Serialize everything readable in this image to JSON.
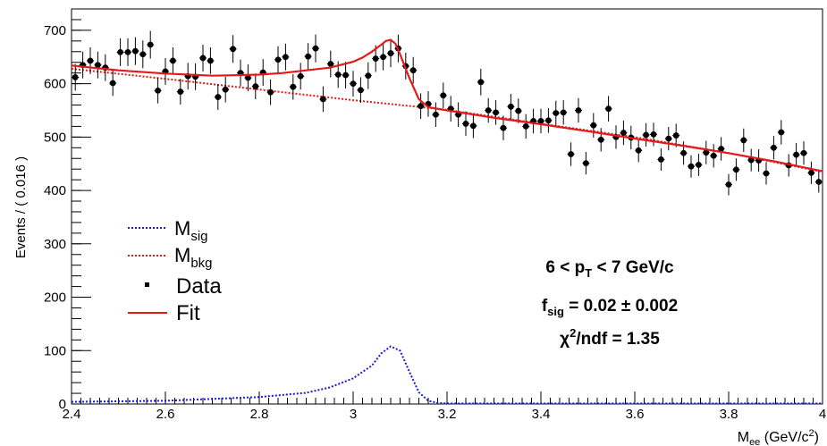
{
  "chart_data": {
    "type": "scatter",
    "xlabel_main": "M",
    "xlabel_sub": "ee",
    "xlabel_unit_pre": " (GeV/c",
    "xlabel_unit_sup": "2",
    "xlabel_unit_post": ")",
    "ylabel": "Events / ( 0.016 )",
    "xlim": [
      2.4,
      4.0
    ],
    "ylim": [
      0,
      740
    ],
    "x_ticks": [
      2.4,
      2.6,
      2.8,
      3.0,
      3.2,
      3.4,
      3.6,
      3.8,
      4.0
    ],
    "x_tick_labels": [
      "2.4",
      "2.6",
      "2.8",
      "3",
      "3.2",
      "3.4",
      "3.6",
      "3.8",
      "4"
    ],
    "y_ticks": [
      0,
      100,
      200,
      300,
      400,
      500,
      600,
      700
    ],
    "y_tick_labels": [
      "0",
      "100",
      "200",
      "300",
      "400",
      "500",
      "600",
      "700"
    ],
    "legend": {
      "sig_main": "M",
      "sig_sub": "sig",
      "bkg_main": "M",
      "bkg_sub": "bkg",
      "data": "Data",
      "fit": "Fit"
    },
    "annotations": {
      "pt_pre": "6 < p",
      "pt_sub": "T",
      "pt_post": " < 7 GeV/c",
      "fsig_main": "f",
      "fsig_sub": "sig",
      "fsig_post": " = 0.02 ± 0.002",
      "chi_pre": "χ",
      "chi_sup": "2",
      "chi_post": "/ndf = 1.35"
    },
    "colors": {
      "signal": "#1a1ad6",
      "background": "#e41a1a",
      "fit": "#e41a1a",
      "data": "#000000"
    },
    "data_points": {
      "x": [
        2.408,
        2.424,
        2.44,
        2.456,
        2.472,
        2.488,
        2.504,
        2.52,
        2.536,
        2.552,
        2.568,
        2.584,
        2.6,
        2.616,
        2.632,
        2.648,
        2.664,
        2.68,
        2.696,
        2.712,
        2.728,
        2.744,
        2.76,
        2.776,
        2.792,
        2.808,
        2.824,
        2.84,
        2.856,
        2.872,
        2.888,
        2.904,
        2.92,
        2.936,
        2.952,
        2.968,
        2.984,
        3.0,
        3.016,
        3.032,
        3.048,
        3.064,
        3.08,
        3.096,
        3.112,
        3.128,
        3.144,
        3.16,
        3.176,
        3.192,
        3.208,
        3.224,
        3.24,
        3.256,
        3.272,
        3.288,
        3.304,
        3.32,
        3.336,
        3.352,
        3.368,
        3.384,
        3.4,
        3.416,
        3.432,
        3.448,
        3.464,
        3.48,
        3.496,
        3.512,
        3.528,
        3.544,
        3.56,
        3.576,
        3.592,
        3.608,
        3.624,
        3.64,
        3.656,
        3.672,
        3.688,
        3.704,
        3.72,
        3.736,
        3.752,
        3.768,
        3.784,
        3.8,
        3.816,
        3.832,
        3.848,
        3.864,
        3.88,
        3.896,
        3.912,
        3.928,
        3.944,
        3.96,
        3.976,
        3.992
      ],
      "y": [
        612,
        635,
        643,
        635,
        630,
        601,
        659,
        659,
        661,
        655,
        673,
        587,
        623,
        643,
        585,
        614,
        613,
        648,
        643,
        575,
        589,
        665,
        620,
        611,
        595,
        621,
        584,
        645,
        650,
        594,
        614,
        651,
        666,
        571,
        637,
        617,
        616,
        600,
        588,
        615,
        647,
        650,
        657,
        666,
        633,
        625,
        558,
        562,
        542,
        578,
        553,
        542,
        525,
        521,
        603,
        550,
        546,
        517,
        557,
        549,
        520,
        530,
        530,
        531,
        545,
        546,
        468,
        550,
        451,
        522,
        495,
        553,
        500,
        508,
        499,
        475,
        504,
        505,
        458,
        497,
        503,
        470,
        445,
        448,
        471,
        465,
        478,
        411,
        439,
        494,
        457,
        456,
        432,
        480,
        509,
        447,
        467,
        470,
        433,
        416
      ],
      "err": [
        25,
        25,
        25,
        25,
        25,
        24,
        26,
        26,
        26,
        26,
        26,
        24,
        25,
        25,
        24,
        25,
        25,
        25,
        25,
        24,
        24,
        26,
        25,
        25,
        24,
        25,
        24,
        25,
        25,
        24,
        25,
        25,
        26,
        24,
        25,
        25,
        25,
        24,
        24,
        25,
        25,
        25,
        26,
        26,
        25,
        25,
        24,
        24,
        23,
        24,
        24,
        23,
        23,
        23,
        25,
        23,
        23,
        23,
        24,
        23,
        23,
        23,
        23,
        23,
        23,
        23,
        22,
        23,
        21,
        23,
        22,
        24,
        22,
        23,
        22,
        22,
        22,
        22,
        21,
        22,
        22,
        22,
        21,
        21,
        22,
        22,
        22,
        20,
        21,
        22,
        21,
        21,
        21,
        22,
        23,
        21,
        22,
        22,
        21,
        20
      ]
    },
    "fit_curve": {
      "x": [
        2.4,
        2.5,
        2.6,
        2.7,
        2.8,
        2.85,
        2.9,
        2.95,
        3.0,
        3.02,
        3.04,
        3.06,
        3.07,
        3.08,
        3.09,
        3.1,
        3.12,
        3.14,
        3.16,
        3.2,
        3.3,
        3.4,
        3.5,
        3.6,
        3.7,
        3.8,
        3.9,
        4.0
      ],
      "y": [
        634,
        625,
        619,
        615,
        617,
        620,
        625,
        630,
        641,
        649,
        660,
        673,
        680,
        682,
        675,
        655,
        610,
        571,
        556,
        550,
        536,
        524,
        511,
        497,
        484,
        470,
        454,
        436
      ]
    },
    "bkg_curve": {
      "x": [
        2.4,
        2.6,
        2.8,
        3.0,
        3.2,
        3.4,
        3.6,
        3.8,
        4.0
      ],
      "y": [
        628,
        609,
        589,
        569,
        551,
        525,
        500,
        470,
        435
      ]
    },
    "sig_curve": {
      "x": [
        2.4,
        2.6,
        2.8,
        2.9,
        2.95,
        3.0,
        3.04,
        3.06,
        3.08,
        3.1,
        3.12,
        3.14,
        3.16,
        3.18,
        3.2,
        4.0
      ],
      "y": [
        4,
        6,
        13,
        21,
        31,
        48,
        72,
        95,
        108,
        100,
        60,
        22,
        6,
        2,
        1,
        1
      ]
    }
  }
}
